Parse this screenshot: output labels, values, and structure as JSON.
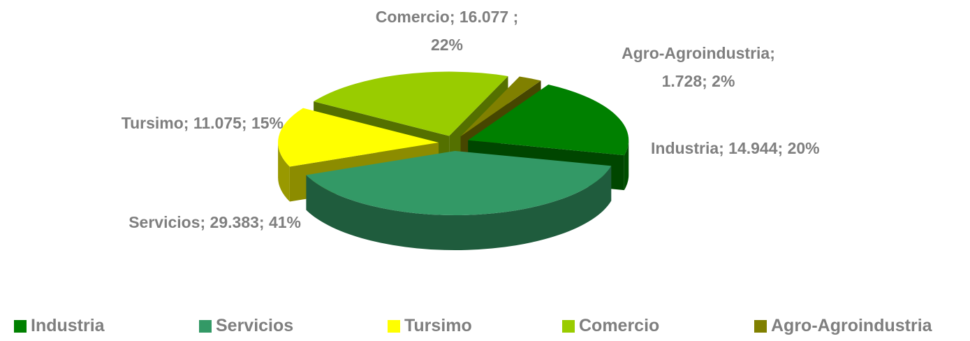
{
  "chart_data": {
    "type": "pie",
    "categories": [
      "Industria",
      "Servicios",
      "Tursimo",
      "Comercio",
      "Agro-Agroindustria"
    ],
    "values": [
      14944,
      29383,
      11075,
      16077,
      1728
    ],
    "value_labels": [
      "Industria; 14.944; 20%",
      "Servicios; 29.383; 41%",
      "Tursimo; 11.075; 15%",
      "Comercio;  16.077 ;\n22%",
      "Agro-Agroindustria;\n1.728; 2%"
    ],
    "colors": [
      "#008000",
      "#339966",
      "#ffff00",
      "#99cc00",
      "#808000"
    ],
    "legend": "bottom"
  }
}
